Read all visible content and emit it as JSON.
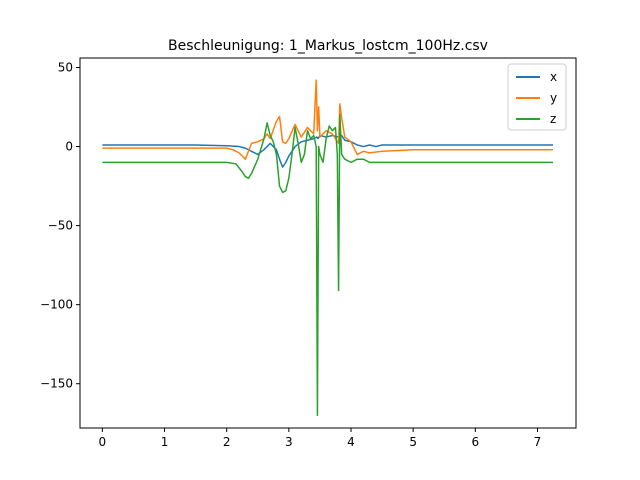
{
  "chart_data": {
    "type": "line",
    "title": "Beschleunigung: 1_Markus_lostcm_100Hz.csv",
    "xlabel": "",
    "ylabel": "",
    "xlim": [
      -0.36,
      7.62
    ],
    "ylim": [
      -178,
      56
    ],
    "xticks": [
      0,
      1,
      2,
      3,
      4,
      5,
      6,
      7
    ],
    "yticks": [
      50,
      0,
      -50,
      -100,
      -150
    ],
    "ytick_labels": [
      "50",
      "0",
      "−50",
      "−100",
      "−150"
    ],
    "grid": false,
    "legend_position": "top-right",
    "series": [
      {
        "name": "x",
        "color": "#1f77b4",
        "x": [
          0,
          0.5,
          1.0,
          1.5,
          2.0,
          2.2,
          2.3,
          2.4,
          2.5,
          2.6,
          2.7,
          2.8,
          2.85,
          2.9,
          2.95,
          3.0,
          3.05,
          3.1,
          3.2,
          3.3,
          3.4,
          3.45,
          3.47,
          3.5,
          3.6,
          3.7,
          3.8,
          3.85,
          3.9,
          4.0,
          4.1,
          4.2,
          4.3,
          4.4,
          4.5,
          5.0,
          5.5,
          6.0,
          6.5,
          7.0,
          7.25
        ],
        "y": [
          1,
          1,
          1,
          1,
          0.5,
          0,
          -1,
          -3,
          -5,
          -2,
          2,
          -2,
          -8,
          -13,
          -10,
          -6,
          -3,
          0,
          3,
          4,
          5,
          6,
          5,
          7,
          6,
          7,
          6,
          7,
          4,
          3,
          1,
          0,
          1,
          0,
          1,
          1,
          1,
          1,
          1,
          1,
          1
        ]
      },
      {
        "name": "y",
        "color": "#ff7f0e",
        "x": [
          0,
          0.5,
          1.0,
          1.5,
          2.0,
          2.1,
          2.2,
          2.3,
          2.4,
          2.5,
          2.6,
          2.65,
          2.7,
          2.8,
          2.85,
          2.9,
          2.95,
          3.0,
          3.1,
          3.2,
          3.3,
          3.4,
          3.44,
          3.46,
          3.48,
          3.5,
          3.6,
          3.7,
          3.8,
          3.82,
          3.85,
          3.9,
          4.0,
          4.1,
          4.2,
          4.3,
          4.5,
          5.0,
          5.5,
          6.0,
          6.5,
          7.0,
          7.25
        ],
        "y": [
          -1,
          -1,
          -1,
          -1,
          -1,
          -2,
          -4,
          -8,
          2,
          3,
          5,
          8,
          5,
          16,
          19,
          3,
          2,
          5,
          14,
          6,
          12,
          8,
          42,
          10,
          25,
          6,
          10,
          8,
          2,
          27,
          18,
          6,
          3,
          -5,
          -3,
          -4,
          -3,
          -2,
          -2,
          -2,
          -2,
          -2,
          -2
        ]
      },
      {
        "name": "z",
        "color": "#2ca02c",
        "x": [
          0,
          0.5,
          1.0,
          1.5,
          2.0,
          2.15,
          2.25,
          2.3,
          2.35,
          2.4,
          2.5,
          2.6,
          2.65,
          2.7,
          2.75,
          2.8,
          2.85,
          2.9,
          2.95,
          3.0,
          3.05,
          3.1,
          3.15,
          3.2,
          3.25,
          3.3,
          3.35,
          3.4,
          3.44,
          3.46,
          3.48,
          3.5,
          3.55,
          3.6,
          3.65,
          3.7,
          3.75,
          3.78,
          3.8,
          3.82,
          3.85,
          3.9,
          4.0,
          4.1,
          4.2,
          4.3,
          4.5,
          5.0,
          5.5,
          6.0,
          6.5,
          7.0,
          7.25
        ],
        "y": [
          -10,
          -10,
          -10,
          -10,
          -10,
          -11,
          -16,
          -19,
          -20,
          -17,
          -8,
          5,
          15,
          7,
          3,
          -5,
          -25,
          -29,
          -28,
          -20,
          -5,
          12,
          2,
          -10,
          -5,
          10,
          5,
          7,
          0,
          -170,
          0,
          -5,
          -10,
          5,
          13,
          10,
          12,
          -5,
          -91,
          20,
          -5,
          -8,
          -10,
          -8,
          -8,
          -10,
          -10,
          -10,
          -10,
          -10,
          -10,
          -10,
          -10
        ]
      }
    ]
  }
}
